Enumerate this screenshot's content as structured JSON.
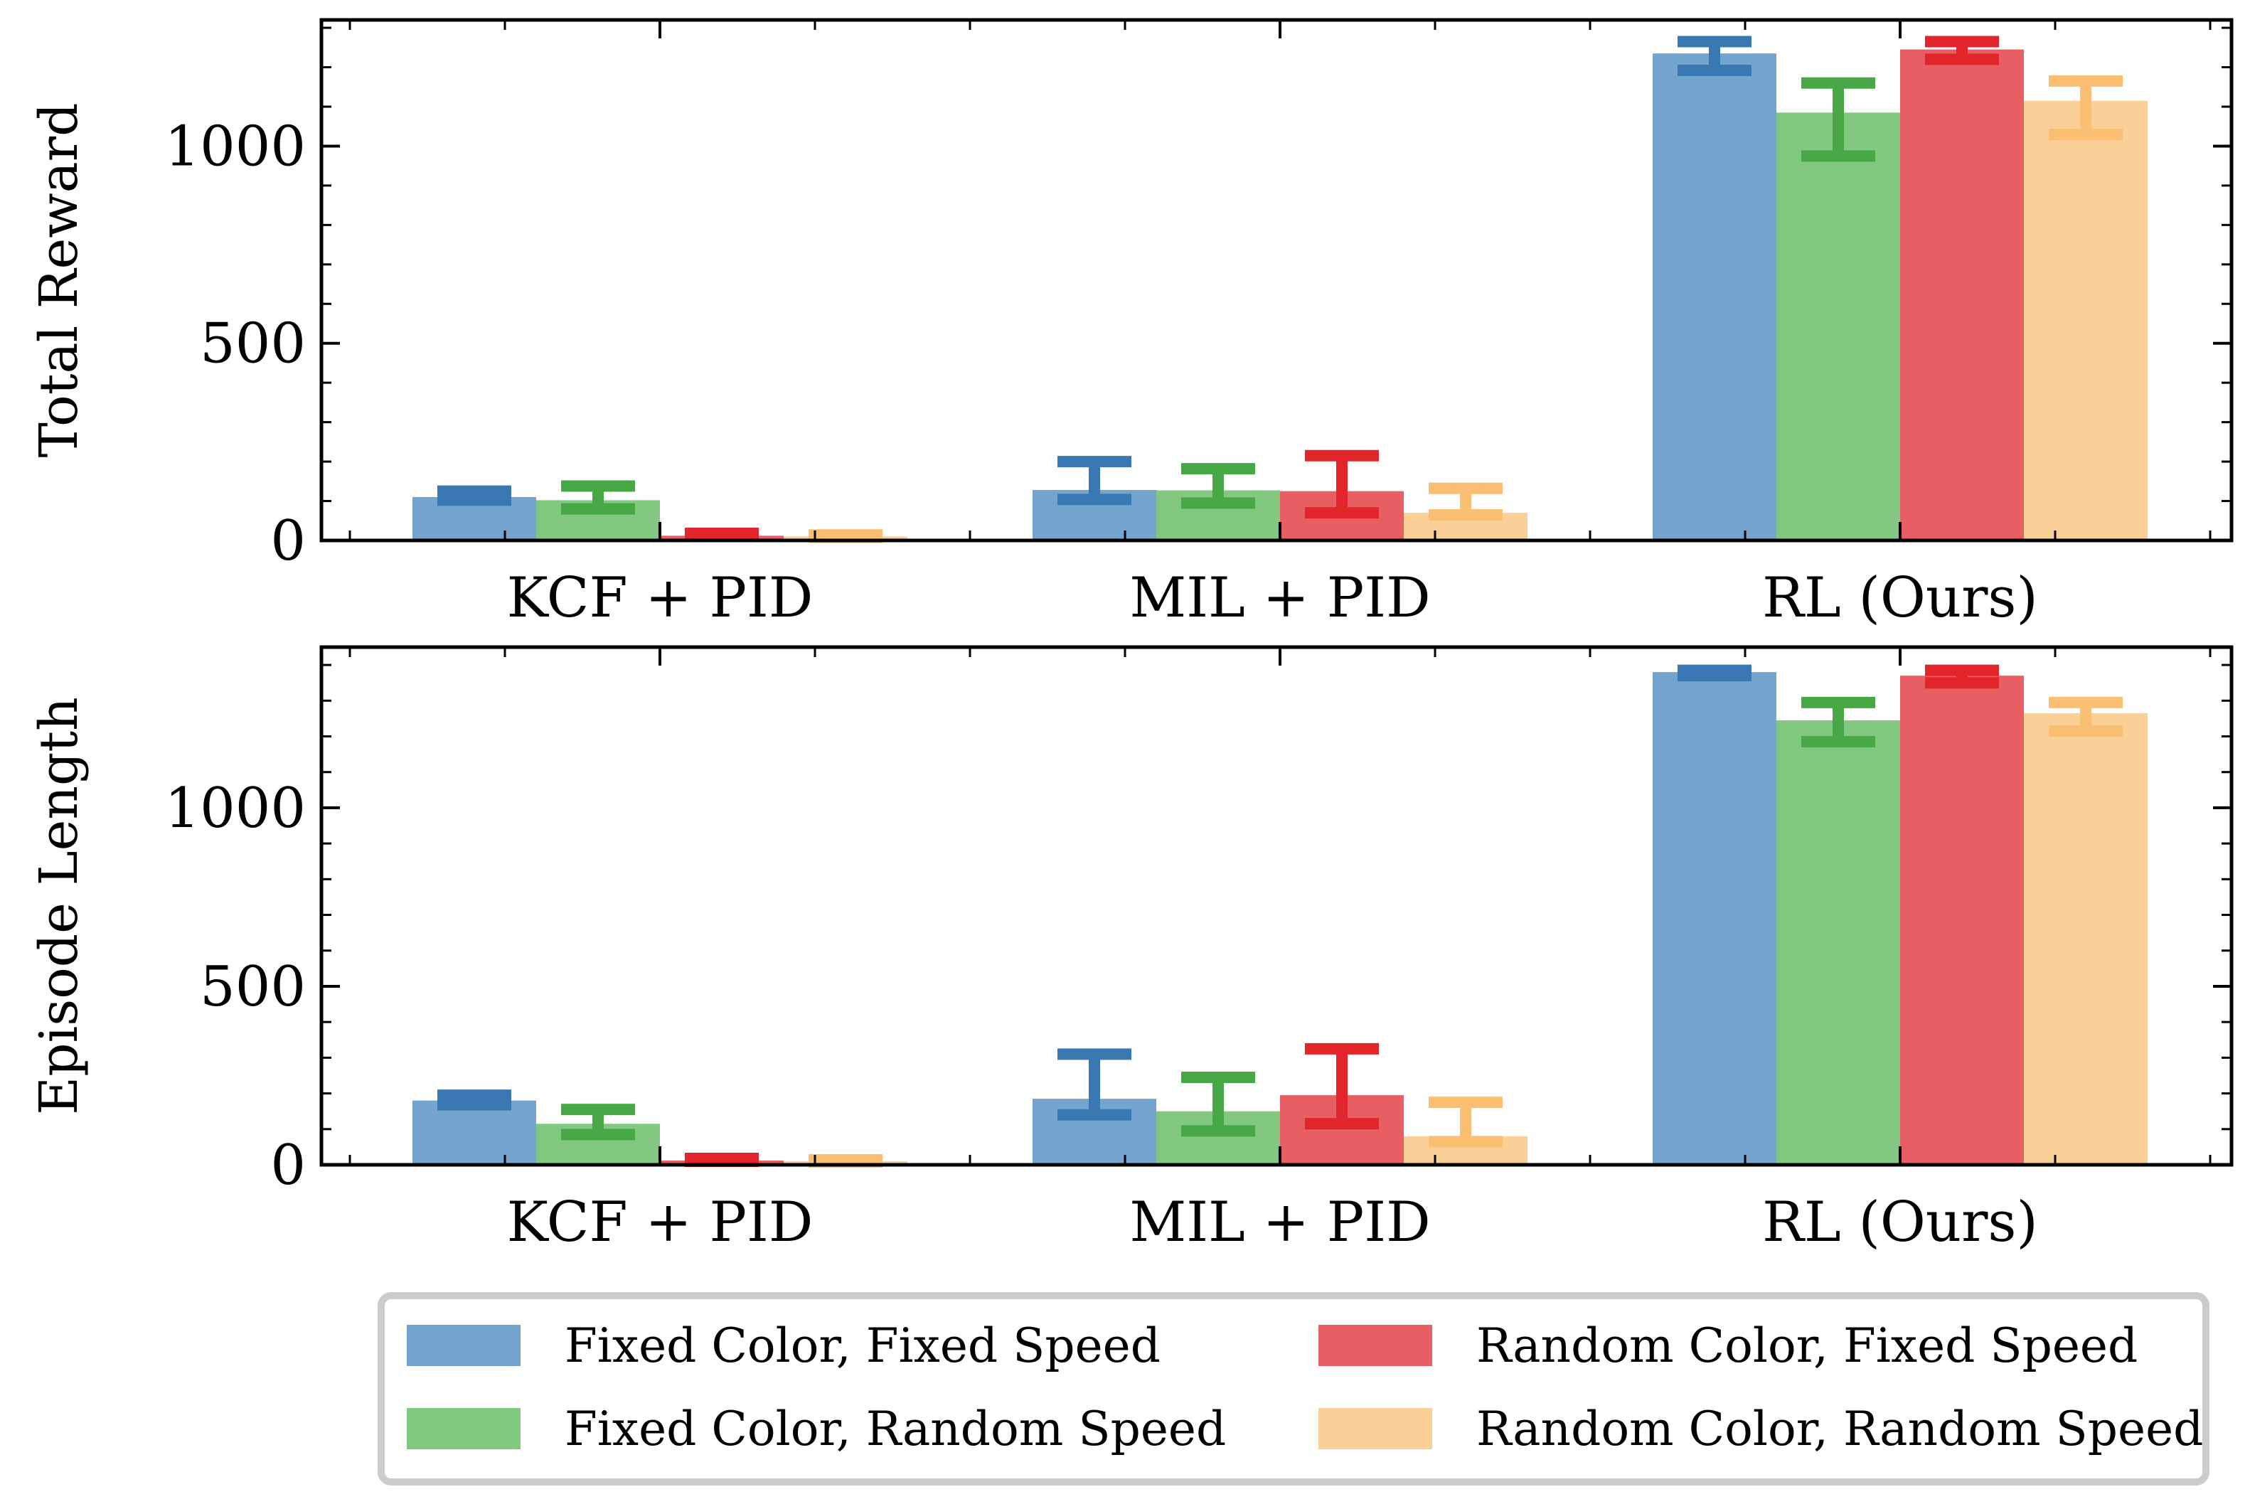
{
  "legend": {
    "placement": "bottom-center",
    "entries": [
      {
        "name": "Fixed Color, Fixed Speed",
        "color": "#74a5ce"
      },
      {
        "name": "Random Color, Fixed Speed",
        "color": "#e85f63"
      },
      {
        "name": "Fixed Color, Random Speed",
        "color": "#82c880"
      },
      {
        "name": "Random Color, Random Speed",
        "color": "#fbd096"
      }
    ]
  },
  "chart_data": [
    {
      "type": "bar",
      "title": "",
      "xlabel": "",
      "ylabel": "Total Reward",
      "ylim": [
        0,
        1320
      ],
      "yticks": [
        0,
        500,
        1000
      ],
      "categories": [
        "KCF + PID",
        "MIL + PID",
        "RL (Ours)"
      ],
      "series": [
        {
          "name": "Fixed Color, Fixed Speed",
          "color": "#74a5ce",
          "err_color": "#3a78b4",
          "values": [
            110,
            128,
            1235
          ],
          "err_low": [
            102,
            104,
            1192
          ],
          "err_high": [
            125,
            200,
            1265
          ]
        },
        {
          "name": "Fixed Color, Random Speed",
          "color": "#82c880",
          "err_color": "#48a846",
          "values": [
            102,
            127,
            1085
          ],
          "err_low": [
            80,
            95,
            975
          ],
          "err_high": [
            138,
            182,
            1160
          ]
        },
        {
          "name": "Random Color, Fixed Speed",
          "color": "#e85f63",
          "err_color": "#e2242b",
          "values": [
            12,
            125,
            1245
          ],
          "err_low": [
            10,
            70,
            1220
          ],
          "err_high": [
            18,
            215,
            1265
          ]
        },
        {
          "name": "Random Color, Random Speed",
          "color": "#fbd096",
          "err_color": "#fbbf74",
          "values": [
            10,
            70,
            1115
          ],
          "err_low": [
            8,
            65,
            1030
          ],
          "err_high": [
            14,
            132,
            1165
          ]
        }
      ]
    },
    {
      "type": "bar",
      "title": "",
      "xlabel": "",
      "ylabel": "Episode Length",
      "ylim": [
        0,
        1450
      ],
      "yticks": [
        0,
        500,
        1000
      ],
      "categories": [
        "KCF + PID",
        "MIL + PID",
        "RL (Ours)"
      ],
      "series": [
        {
          "name": "Fixed Color, Fixed Speed",
          "color": "#74a5ce",
          "err_color": "#3a78b4",
          "values": [
            180,
            185,
            1380
          ],
          "err_low": [
            168,
            140,
            1370
          ],
          "err_high": [
            195,
            310,
            1385
          ]
        },
        {
          "name": "Fixed Color, Random Speed",
          "color": "#82c880",
          "err_color": "#48a846",
          "values": [
            115,
            150,
            1245
          ],
          "err_low": [
            85,
            95,
            1185
          ],
          "err_high": [
            155,
            245,
            1295
          ]
        },
        {
          "name": "Random Color, Fixed Speed",
          "color": "#e85f63",
          "err_color": "#e2242b",
          "values": [
            12,
            195,
            1370
          ],
          "err_low": [
            10,
            115,
            1350
          ],
          "err_high": [
            18,
            325,
            1385
          ]
        },
        {
          "name": "Random Color, Random Speed",
          "color": "#fbd096",
          "err_color": "#fbbf74",
          "values": [
            10,
            80,
            1265
          ],
          "err_low": [
            8,
            65,
            1215
          ],
          "err_high": [
            14,
            175,
            1295
          ]
        }
      ]
    }
  ]
}
